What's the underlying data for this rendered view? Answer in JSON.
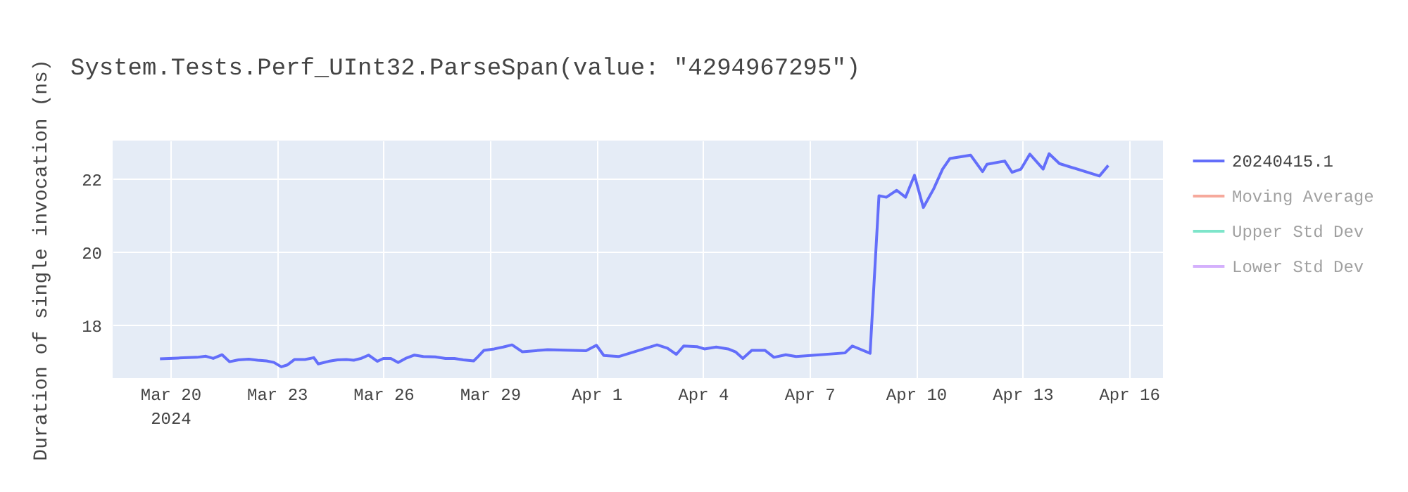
{
  "chart_data": {
    "type": "line",
    "title": "System.Tests.Perf_UInt32.ParseSpan(value: \"4294967295\")",
    "ylabel": "Duration of single invocation (ns)",
    "x": [
      "2024-03-19T17:00",
      "2024-03-20T05:00",
      "2024-03-20T18:00",
      "2024-03-21T00:00",
      "2024-03-21T05:00",
      "2024-03-21T11:00",
      "2024-03-21T16:00",
      "2024-03-21T22:00",
      "2024-03-22T05:00",
      "2024-03-22T11:00",
      "2024-03-22T17:00",
      "2024-03-22T22:00",
      "2024-03-23T03:00",
      "2024-03-23T07:00",
      "2024-03-23T12:00",
      "2024-03-23T19:00",
      "2024-03-24T01:00",
      "2024-03-24T04:00",
      "2024-03-24T11:00",
      "2024-03-24T17:00",
      "2024-03-24T23:00",
      "2024-03-25T04:00",
      "2024-03-25T09:00",
      "2024-03-25T14:00",
      "2024-03-25T20:00",
      "2024-03-26T00:00",
      "2024-03-26T05:00",
      "2024-03-26T10:00",
      "2024-03-26T15:00",
      "2024-03-26T21:00",
      "2024-03-27T03:00",
      "2024-03-27T11:00",
      "2024-03-27T18:00",
      "2024-03-28T00:00",
      "2024-03-28T06:00",
      "2024-03-28T13:00",
      "2024-03-28T16:00",
      "2024-03-28T20:00",
      "2024-03-29T03:00",
      "2024-03-29T09:00",
      "2024-03-29T15:00",
      "2024-03-29T22:00",
      "2024-03-30T15:00",
      "2024-03-31T17:00",
      "2024-04-01T00:00",
      "2024-04-01T05:00",
      "2024-04-01T15:00",
      "2024-04-02T17:00",
      "2024-04-03T00:00",
      "2024-04-03T06:00",
      "2024-04-03T11:00",
      "2024-04-03T20:00",
      "2024-04-04T01:00",
      "2024-04-04T09:00",
      "2024-04-04T17:00",
      "2024-04-04T22:00",
      "2024-04-05T03:00",
      "2024-04-05T09:00",
      "2024-04-05T18:00",
      "2024-04-06T00:00",
      "2024-04-06T08:00",
      "2024-04-06T15:00",
      "2024-04-08T00:00",
      "2024-04-08T05:00",
      "2024-04-08T17:00",
      "2024-04-08T23:00",
      "2024-04-09T04:00",
      "2024-04-09T11:00",
      "2024-04-09T17:00",
      "2024-04-09T23:00",
      "2024-04-10T05:00",
      "2024-04-10T12:00",
      "2024-04-10T18:00",
      "2024-04-10T23:00",
      "2024-04-11T13:00",
      "2024-04-11T21:00",
      "2024-04-12T00:00",
      "2024-04-12T12:00",
      "2024-04-12T17:00",
      "2024-04-12T23:00",
      "2024-04-13T05:00",
      "2024-04-13T14:00",
      "2024-04-13T18:00",
      "2024-04-14T01:00",
      "2024-04-15T04:00",
      "2024-04-15T10:00"
    ],
    "series": [
      {
        "name": "20240415.1",
        "color": "#636efa",
        "values": [
          17.08,
          17.1,
          17.12,
          17.15,
          17.09,
          17.19,
          17.0,
          17.05,
          17.07,
          17.04,
          17.02,
          16.98,
          16.86,
          16.91,
          17.06,
          17.06,
          17.11,
          16.94,
          17.01,
          17.05,
          17.06,
          17.04,
          17.09,
          17.18,
          17.01,
          17.09,
          17.09,
          16.98,
          17.09,
          17.18,
          17.14,
          17.13,
          17.09,
          17.09,
          17.05,
          17.02,
          17.14,
          17.31,
          17.35,
          17.4,
          17.46,
          17.27,
          17.33,
          17.3,
          17.45,
          17.17,
          17.14,
          17.46,
          17.37,
          17.2,
          17.43,
          17.41,
          17.35,
          17.4,
          17.35,
          17.27,
          17.09,
          17.31,
          17.31,
          17.12,
          17.19,
          17.14,
          17.24,
          17.43,
          17.23,
          21.54,
          21.5,
          21.69,
          21.5,
          22.1,
          21.22,
          21.73,
          22.27,
          22.56,
          22.65,
          22.2,
          22.4,
          22.49,
          22.18,
          22.27,
          22.68,
          22.27,
          22.69,
          22.42,
          22.08,
          22.37
        ]
      },
      {
        "name": "Moving Average",
        "color": "#ef553b",
        "values": [
          null,
          null,
          null,
          null,
          null,
          null,
          null,
          null,
          null,
          null,
          null,
          null,
          null,
          null,
          null,
          null,
          null,
          null,
          null,
          null,
          null,
          null,
          null,
          null,
          null,
          null,
          null,
          null,
          null,
          null,
          null,
          null,
          null,
          null,
          null,
          null,
          null,
          null,
          null,
          null,
          null,
          null,
          null,
          null,
          null,
          null,
          null,
          null,
          null,
          null,
          null,
          null,
          null,
          null,
          null,
          null,
          null,
          null,
          null,
          null,
          null,
          null,
          null,
          null,
          null,
          null,
          null,
          null,
          null,
          null,
          null,
          null,
          null,
          null,
          null,
          null,
          null,
          null,
          null,
          null,
          null,
          null,
          null,
          null,
          null,
          null
        ]
      },
      {
        "name": "Upper Std Dev",
        "color": "#00cc96",
        "values": [
          null,
          null,
          null,
          null,
          null,
          null,
          null,
          null,
          null,
          null,
          null,
          null,
          null,
          null,
          null,
          null,
          null,
          null,
          null,
          null,
          null,
          null,
          null,
          null,
          null,
          null,
          null,
          null,
          null,
          null,
          null,
          null,
          null,
          null,
          null,
          null,
          null,
          null,
          null,
          null,
          null,
          null,
          null,
          null,
          null,
          null,
          null,
          null,
          null,
          null,
          null,
          null,
          null,
          null,
          null,
          null,
          null,
          null,
          null,
          null,
          null,
          null,
          null,
          null,
          null,
          null,
          null,
          null,
          null,
          null,
          null,
          null,
          null,
          null,
          null,
          null,
          null,
          null,
          null,
          null,
          null,
          null,
          null,
          null,
          null,
          null
        ]
      },
      {
        "name": "Lower Std Dev",
        "color": "#ab63fa",
        "values": [
          null,
          null,
          null,
          null,
          null,
          null,
          null,
          null,
          null,
          null,
          null,
          null,
          null,
          null,
          null,
          null,
          null,
          null,
          null,
          null,
          null,
          null,
          null,
          null,
          null,
          null,
          null,
          null,
          null,
          null,
          null,
          null,
          null,
          null,
          null,
          null,
          null,
          null,
          null,
          null,
          null,
          null,
          null,
          null,
          null,
          null,
          null,
          null,
          null,
          null,
          null,
          null,
          null,
          null,
          null,
          null,
          null,
          null,
          null,
          null,
          null,
          null,
          null,
          null,
          null,
          null,
          null,
          null,
          null,
          null,
          null,
          null,
          null,
          null,
          null,
          null,
          null,
          null,
          null,
          null,
          null,
          null,
          null,
          null,
          null,
          null
        ]
      }
    ],
    "xlim": [
      "2024-03-18T09:00",
      "2024-04-16T23:00"
    ],
    "xticks": [
      {
        "value": "2024-03-20",
        "label": "Mar 20\n2024"
      },
      {
        "value": "2024-03-23",
        "label": "Mar 23"
      },
      {
        "value": "2024-03-26",
        "label": "Mar 26"
      },
      {
        "value": "2024-03-29",
        "label": "Mar 29"
      },
      {
        "value": "2024-04-01",
        "label": "Apr 1"
      },
      {
        "value": "2024-04-04",
        "label": "Apr 4"
      },
      {
        "value": "2024-04-07",
        "label": "Apr 7"
      },
      {
        "value": "2024-04-10",
        "label": "Apr 10"
      },
      {
        "value": "2024-04-13",
        "label": "Apr 13"
      },
      {
        "value": "2024-04-16",
        "label": "Apr 16"
      }
    ],
    "ylim": [
      16.55,
      23.05
    ],
    "yticks": [
      18,
      20,
      22
    ],
    "grid": true,
    "legend": "right",
    "line_style": "solid"
  }
}
